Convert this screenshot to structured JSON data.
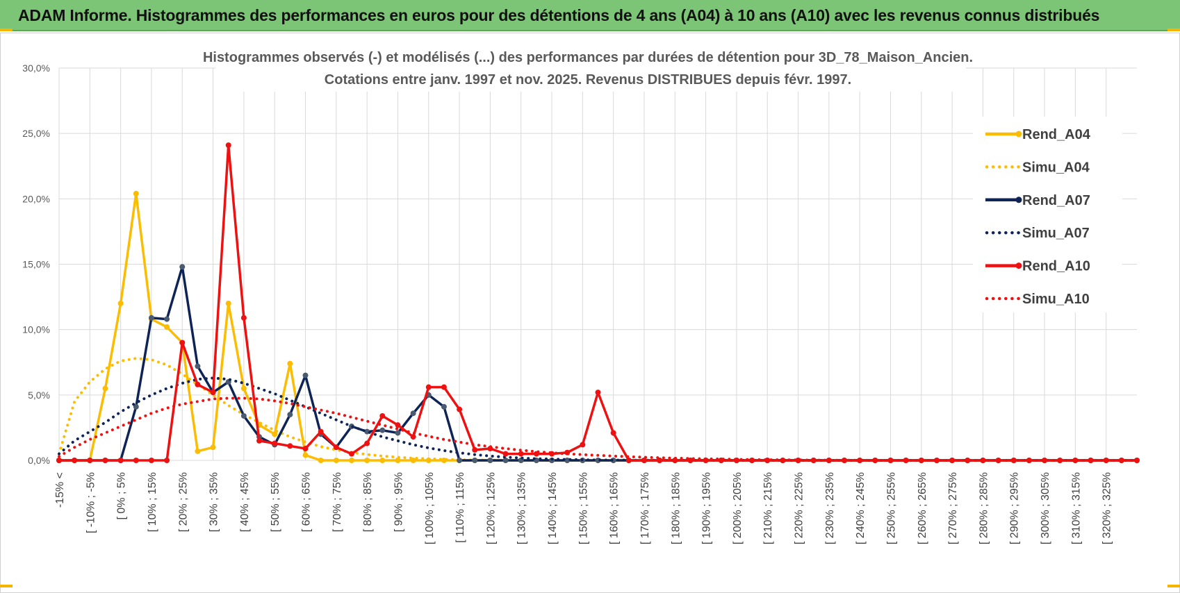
{
  "banner_title": "ADAM Informe. Histogrammes des performances en euros pour des détentions de 4 ans (A04) à 10 ans (A10) avec les revenus connus distribués",
  "colors": {
    "a04": "#fbbc04",
    "a07": "#0f2456",
    "a10": "#ee1111",
    "grid": "#d9d9d9",
    "banner": "#7cc576"
  },
  "chart_data": {
    "type": "line",
    "title": "Histogrammes observés (-)  et modélisés (...) des performances par durées de détention pour 3D_78_Maison_Ancien.",
    "subtitle": "Cotations entre janv. 1997 et nov. 2025. Revenus DISTRIBUES depuis févr. 1997.",
    "xlabel": "",
    "ylabel": "",
    "ylim": [
      0,
      30
    ],
    "yticks": [
      "0,0%",
      "5,0%",
      "10,0%",
      "15,0%",
      "20,0%",
      "25,0%",
      "30,0%"
    ],
    "grid": true,
    "legend_position": "right",
    "x_tick_labels": [
      "-15% <",
      "[ -10% ; -5%",
      "[ 0% ; 5%",
      "[ 10% ; 15%",
      "[ 20% ; 25%",
      "[ 30% ; 35%",
      "[ 40% ; 45%",
      "[ 50% ; 55%",
      "[ 60% ; 65%",
      "[ 70% ; 75%",
      "[ 80% ; 85%",
      "[ 90% ; 95%",
      "[ 100% ; 105%",
      "[ 110% ; 115%",
      "[ 120% ; 125%",
      "[ 130% ; 135%",
      "[ 140% ; 145%",
      "[ 150% ; 155%",
      "[ 160% ; 165%",
      "[ 170% ; 175%",
      "[ 180% ; 185%",
      "[ 190% ; 195%",
      "[ 200% ; 205%",
      "[ 210% ; 215%",
      "[ 220% ; 225%",
      "[ 230% ; 235%",
      "[ 240% ; 245%",
      "[ 250% ; 255%",
      "[ 260% ; 265%",
      "[ 270% ; 275%",
      "[ 280% ; 285%",
      "[ 290% ; 295%",
      "[ 300% ; 305%",
      "[ 310% ; 315%",
      "[ 320% ; 325%"
    ],
    "series": [
      {
        "name": "Rend_A04",
        "style": "solid",
        "color": "#fbbc04",
        "values": [
          0,
          0,
          0,
          5.5,
          12,
          20.4,
          10.8,
          10.2,
          9,
          0.7,
          1,
          12,
          5.5,
          2.7,
          2,
          7.4,
          0.4,
          0,
          0,
          0,
          0,
          0,
          0,
          0,
          0,
          0,
          0,
          0,
          0,
          0,
          0,
          0,
          0,
          0,
          0,
          0,
          0,
          0,
          0,
          0,
          0,
          0,
          0,
          0,
          0,
          0,
          0,
          0,
          0,
          0,
          0,
          0,
          0,
          0,
          0,
          0,
          0,
          0,
          0,
          0,
          0,
          0,
          0,
          0,
          0,
          0,
          0,
          0,
          0,
          0,
          0
        ]
      },
      {
        "name": "Simu_A04",
        "style": "dotted",
        "color": "#fbbc04",
        "values": [
          0.5,
          4.5,
          6,
          7,
          7.6,
          7.8,
          7.7,
          7.3,
          6.6,
          5.8,
          5,
          4.2,
          3.5,
          2.9,
          2.3,
          1.8,
          1.4,
          1.05,
          0.8,
          0.6,
          0.45,
          0.33,
          0.24,
          0.17,
          0.12,
          0.08,
          0.05,
          0.03,
          0.02,
          0.01,
          0.01,
          0,
          0,
          0,
          0,
          0,
          0,
          0,
          0,
          0,
          0,
          0,
          0,
          0,
          0,
          0,
          0,
          0,
          0,
          0,
          0,
          0,
          0,
          0,
          0,
          0,
          0,
          0,
          0,
          0,
          0,
          0,
          0,
          0,
          0,
          0,
          0,
          0,
          0,
          0,
          0
        ]
      },
      {
        "name": "Rend_A07",
        "style": "solid",
        "color": "#0f2456",
        "values": [
          0,
          0,
          0,
          0,
          0,
          4.1,
          10.9,
          10.8,
          14.8,
          7.2,
          5.2,
          6,
          3.4,
          1.8,
          1.2,
          3.5,
          6.5,
          2,
          1,
          2.6,
          2.2,
          2.3,
          2.1,
          3.6,
          5,
          4.1,
          0,
          0,
          0,
          0,
          0,
          0,
          0,
          0,
          0,
          0,
          0,
          0,
          0,
          0,
          0,
          0,
          0,
          0,
          0,
          0,
          0,
          0,
          0,
          0,
          0,
          0,
          0,
          0,
          0,
          0,
          0,
          0,
          0,
          0,
          0,
          0,
          0,
          0,
          0,
          0,
          0,
          0,
          0,
          0,
          0
        ]
      },
      {
        "name": "Simu_A07",
        "style": "dotted",
        "color": "#0f2456",
        "values": [
          0.5,
          1.5,
          2.2,
          2.9,
          3.7,
          4.4,
          5,
          5.5,
          5.9,
          6.2,
          6.3,
          6.2,
          5.9,
          5.5,
          5.1,
          4.6,
          4.1,
          3.6,
          3.1,
          2.6,
          2.2,
          1.8,
          1.5,
          1.2,
          0.95,
          0.75,
          0.58,
          0.44,
          0.33,
          0.25,
          0.18,
          0.13,
          0.1,
          0.07,
          0.05,
          0.03,
          0.02,
          0.02,
          0.01,
          0.01,
          0,
          0,
          0,
          0,
          0,
          0,
          0,
          0,
          0,
          0,
          0,
          0,
          0,
          0,
          0,
          0,
          0,
          0,
          0,
          0,
          0,
          0,
          0,
          0,
          0,
          0,
          0,
          0,
          0,
          0,
          0
        ]
      },
      {
        "name": "Rend_A10",
        "style": "solid",
        "color": "#ee1111",
        "values": [
          0,
          0,
          0,
          0,
          0,
          0,
          0,
          0,
          9,
          5.8,
          5.2,
          24.1,
          10.9,
          1.5,
          1.3,
          1.1,
          0.9,
          2.2,
          1,
          0.5,
          1.3,
          3.4,
          2.7,
          1.8,
          5.6,
          5.6,
          3.9,
          0.8,
          0.9,
          0.5,
          0.5,
          0.5,
          0.5,
          0.6,
          1.2,
          5.2,
          2.1,
          0,
          0,
          0,
          0,
          0,
          0,
          0,
          0,
          0,
          0,
          0,
          0,
          0,
          0,
          0,
          0,
          0,
          0,
          0,
          0,
          0,
          0,
          0,
          0,
          0,
          0,
          0,
          0,
          0,
          0,
          0,
          0,
          0,
          0
        ]
      },
      {
        "name": "Simu_A10",
        "style": "dotted",
        "color": "#ee1111",
        "values": [
          0.3,
          1,
          1.6,
          2.1,
          2.6,
          3.1,
          3.6,
          4,
          4.3,
          4.5,
          4.7,
          4.75,
          4.75,
          4.7,
          4.55,
          4.35,
          4.1,
          3.85,
          3.6,
          3.3,
          3,
          2.7,
          2.4,
          2.1,
          1.85,
          1.6,
          1.4,
          1.2,
          1.05,
          0.9,
          0.78,
          0.67,
          0.58,
          0.5,
          0.44,
          0.38,
          0.33,
          0.28,
          0.24,
          0.2,
          0.17,
          0.14,
          0.12,
          0.1,
          0.08,
          0.06,
          0.05,
          0.04,
          0.03,
          0.02,
          0.02,
          0.01,
          0.01,
          0,
          0,
          0,
          0,
          0,
          0,
          0,
          0,
          0,
          0,
          0,
          0,
          0,
          0,
          0,
          0,
          0,
          0
        ]
      }
    ]
  }
}
